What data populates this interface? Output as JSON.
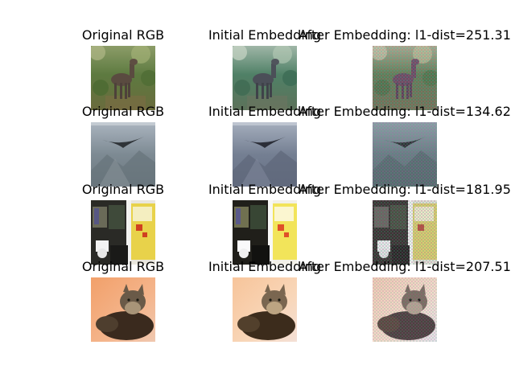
{
  "figure": {
    "background": "#ffffff",
    "rows": [
      {
        "subject": "deer in grassy field",
        "original": {
          "title": "Original RGB"
        },
        "initial": {
          "title": "Initial Embedding"
        },
        "after": {
          "title": "After Embedding: l1-dist=251.31"
        }
      },
      {
        "subject": "bird gliding over rocky slope",
        "original": {
          "title": "Original RGB"
        },
        "initial": {
          "title": "Initial Embedding"
        },
        "after": {
          "title": "After Embedding: l1-dist=134.62"
        }
      },
      {
        "subject": "yellow truck side",
        "original": {
          "title": "Original RGB"
        },
        "initial": {
          "title": "Initial Embedding"
        },
        "after": {
          "title": "After Embedding: l1-dist=181.95"
        }
      },
      {
        "subject": "tabby cat on pink blanket",
        "original": {
          "title": "Original RGB"
        },
        "initial": {
          "title": "Initial Embedding"
        },
        "after": {
          "title": "After Embedding: l1-dist=207.51"
        }
      }
    ]
  }
}
